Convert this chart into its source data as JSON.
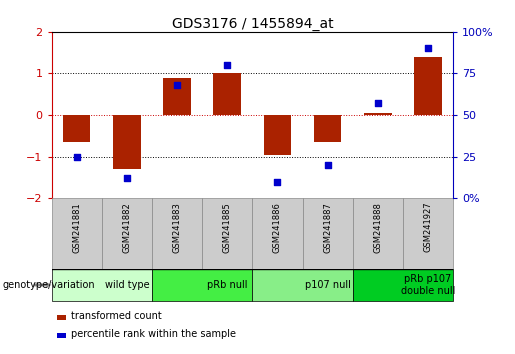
{
  "title": "GDS3176 / 1455894_at",
  "samples": [
    "GSM241881",
    "GSM241882",
    "GSM241883",
    "GSM241885",
    "GSM241886",
    "GSM241887",
    "GSM241888",
    "GSM241927"
  ],
  "bar_values": [
    -0.65,
    -1.3,
    0.88,
    1.0,
    -0.95,
    -0.65,
    0.05,
    1.4
  ],
  "dot_percentiles": [
    25,
    12,
    68,
    80,
    10,
    20,
    57,
    90
  ],
  "bar_color": "#AA2200",
  "dot_color": "#0000CC",
  "groups": [
    {
      "label": "wild type",
      "span": [
        0,
        2
      ],
      "color": "#CCFFCC"
    },
    {
      "label": "pRb null",
      "span": [
        2,
        4
      ],
      "color": "#44EE44"
    },
    {
      "label": "p107 null",
      "span": [
        4,
        6
      ],
      "color": "#88EE88"
    },
    {
      "label": "pRb p107\ndouble null",
      "span": [
        6,
        8
      ],
      "color": "#00CC22"
    }
  ],
  "ylim": [
    -2,
    2
  ],
  "yticks_left": [
    -2,
    -1,
    0,
    1,
    2
  ],
  "yticks_right": [
    0,
    25,
    50,
    75,
    100
  ],
  "right_ylabels": [
    "0%",
    "25",
    "50",
    "75",
    "100%"
  ],
  "left_tick_color": "#CC0000",
  "right_tick_color": "#0000BB",
  "legend_bar_label": "transformed count",
  "legend_dot_label": "percentile rank within the sample",
  "genotype_label": "genotype/variation",
  "sample_box_color": "#CCCCCC",
  "sample_box_edge": "#888888"
}
